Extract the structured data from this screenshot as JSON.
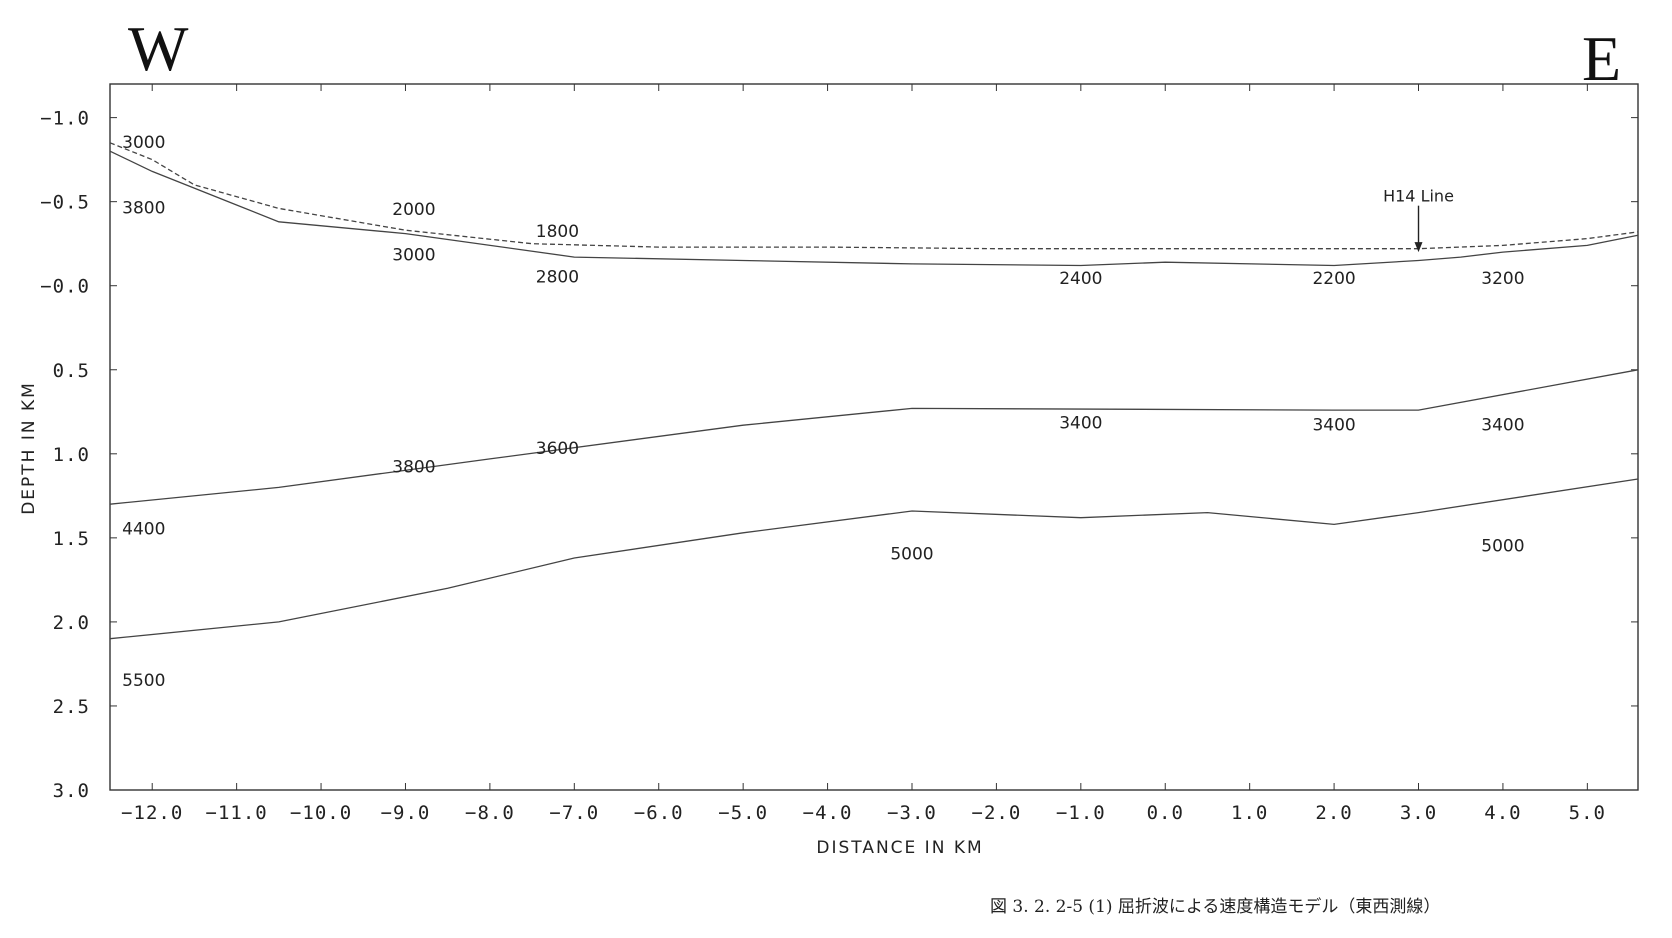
{
  "directions": {
    "west": "W",
    "east": "E"
  },
  "caption": "図 3. 2. 2-5 (1)  屈折波による速度構造モデル（東西測線）",
  "chart_data": {
    "type": "line",
    "xlabel": "DISTANCE IN KM",
    "ylabel": "DEPTH IN KM",
    "xlim": [
      -12.5,
      5.6
    ],
    "ylim": [
      -1.2,
      3.0
    ],
    "y_inverted": true,
    "grid": false,
    "x_ticks": [
      -12.0,
      -11.0,
      -10.0,
      -9.0,
      -8.0,
      -7.0,
      -6.0,
      -5.0,
      -4.0,
      -3.0,
      -2.0,
      -1.0,
      0.0,
      1.0,
      2.0,
      3.0,
      4.0,
      5.0
    ],
    "x_tick_labels": [
      "−12.0",
      "−11.0",
      "−10.0",
      "−9.0",
      "−8.0",
      "−7.0",
      "−6.0",
      "−5.0",
      "−4.0",
      "−3.0",
      "−2.0",
      "−1.0",
      "0.0",
      "1.0",
      "2.0",
      "3.0",
      "4.0",
      "5.0"
    ],
    "y_ticks": [
      -1.0,
      -0.5,
      0.0,
      0.5,
      1.0,
      1.5,
      2.0,
      2.5,
      3.0
    ],
    "y_tick_labels": [
      "−1.0",
      "−0.5",
      "−0.0",
      "0.5",
      "1.0",
      "1.5",
      "2.0",
      "2.5",
      "3.0"
    ],
    "series": [
      {
        "dash": "5,3",
        "x": [
          -12.5,
          -12.0,
          -11.5,
          -10.5,
          -9.0,
          -7.5,
          -6.0,
          -4.0,
          -2.0,
          0.0,
          2.0,
          3.0,
          4.0,
          5.0,
          5.6
        ],
        "y": [
          -0.85,
          -0.75,
          -0.6,
          -0.46,
          -0.33,
          -0.25,
          -0.23,
          -0.23,
          -0.22,
          -0.22,
          -0.22,
          -0.22,
          -0.24,
          -0.28,
          -0.32
        ]
      },
      {
        "dash": "",
        "x": [
          -12.5,
          -12.0,
          -11.0,
          -10.5,
          -9.0,
          -7.0,
          -5.0,
          -3.0,
          -1.0,
          0.0,
          2.0,
          3.0,
          3.5,
          4.0,
          5.0,
          5.6
        ],
        "y": [
          -0.8,
          -0.68,
          -0.48,
          -0.38,
          -0.31,
          -0.17,
          -0.15,
          -0.13,
          -0.12,
          -0.14,
          -0.12,
          -0.15,
          -0.17,
          -0.2,
          -0.24,
          -0.3
        ]
      },
      {
        "dash": "",
        "x": [
          -12.5,
          -10.5,
          -8.0,
          -5.0,
          -3.0,
          2.0,
          3.0,
          5.6
        ],
        "y": [
          1.3,
          1.2,
          1.03,
          0.83,
          0.73,
          0.74,
          0.74,
          0.5
        ]
      },
      {
        "dash": "",
        "x": [
          -12.5,
          -10.5,
          -8.5,
          -7.0,
          -5.0,
          -3.0,
          -1.0,
          0.5,
          2.0,
          3.0,
          5.6
        ],
        "y": [
          2.1,
          2.0,
          1.8,
          1.62,
          1.47,
          1.34,
          1.38,
          1.35,
          1.42,
          1.35,
          1.15
        ]
      }
    ],
    "velocity_labels": [
      {
        "text": "3000",
        "x": -12.1,
        "y": -0.82
      },
      {
        "text": "3800",
        "x": -12.1,
        "y": -0.43
      },
      {
        "text": "2000",
        "x": -8.9,
        "y": -0.42
      },
      {
        "text": "3000",
        "x": -8.9,
        "y": -0.15
      },
      {
        "text": "1800",
        "x": -7.2,
        "y": -0.29
      },
      {
        "text": "2800",
        "x": -7.2,
        "y": -0.02
      },
      {
        "text": "2400",
        "x": -1.0,
        "y": -0.01
      },
      {
        "text": "2200",
        "x": 2.0,
        "y": -0.01
      },
      {
        "text": "3200",
        "x": 4.0,
        "y": -0.01
      },
      {
        "text": "3400",
        "x": -1.0,
        "y": 0.85
      },
      {
        "text": "3400",
        "x": 2.0,
        "y": 0.86
      },
      {
        "text": "3400",
        "x": 4.0,
        "y": 0.86
      },
      {
        "text": "3600",
        "x": -7.2,
        "y": 1.0
      },
      {
        "text": "3800",
        "x": -8.9,
        "y": 1.11
      },
      {
        "text": "4400",
        "x": -12.1,
        "y": 1.48
      },
      {
        "text": "5000",
        "x": -3.0,
        "y": 1.63
      },
      {
        "text": "5000",
        "x": 4.0,
        "y": 1.58
      },
      {
        "text": "5500",
        "x": -12.1,
        "y": 2.38
      }
    ],
    "annotation": {
      "text": "H14 Line",
      "x": 3.0,
      "y_text": -0.5,
      "y_arrow_tip": -0.2
    }
  }
}
